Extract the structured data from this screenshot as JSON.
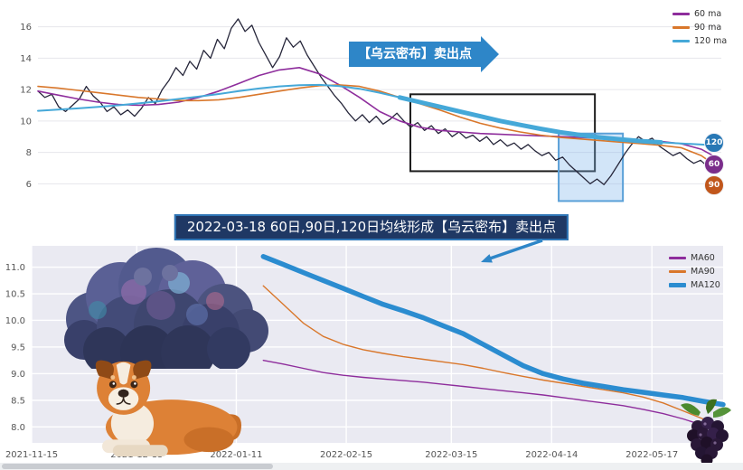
{
  "banner": {
    "text": "2022-03-18 60日,90日,120日均线形成【乌云密布】卖出点",
    "bg": "#1f3864",
    "border": "#2e75b6"
  },
  "chart_data": [
    {
      "type": "line",
      "title": "",
      "xlabel": "",
      "ylabel": "",
      "ylim": [
        5.5,
        16.9
      ],
      "yticks": [
        6,
        8,
        10,
        12,
        14,
        16
      ],
      "grid_color": "#e6e6ec",
      "legend_position": "top-right",
      "legend": [
        {
          "label": "60 ma",
          "color": "#8e2d9c"
        },
        {
          "label": "90 ma",
          "color": "#d9772b"
        },
        {
          "label": "120 ma",
          "color": "#45a8d8"
        }
      ],
      "series": [
        {
          "name": "price",
          "color": "#26263a",
          "width": 1.3,
          "values": [
            11.9,
            11.5,
            11.7,
            10.9,
            10.6,
            11.0,
            11.4,
            12.2,
            11.6,
            11.2,
            10.6,
            10.9,
            10.4,
            10.7,
            10.3,
            10.8,
            11.5,
            11.1,
            12.0,
            12.6,
            13.4,
            12.9,
            13.8,
            13.3,
            14.5,
            14.0,
            15.2,
            14.6,
            15.9,
            16.5,
            15.7,
            16.1,
            15.0,
            14.2,
            13.4,
            14.1,
            15.3,
            14.7,
            15.1,
            14.2,
            13.5,
            12.8,
            12.2,
            11.6,
            11.1,
            10.5,
            10.0,
            10.4,
            9.9,
            10.3,
            9.8,
            10.1,
            10.5,
            10.0,
            9.6,
            9.9,
            9.4,
            9.7,
            9.2,
            9.5,
            9.0,
            9.3,
            8.9,
            9.1,
            8.7,
            9.0,
            8.5,
            8.8,
            8.4,
            8.6,
            8.2,
            8.5,
            8.1,
            7.8,
            8.0,
            7.5,
            7.7,
            7.2,
            6.8,
            6.4,
            6.0,
            6.3,
            5.95,
            6.5,
            7.2,
            7.9,
            8.5,
            9.0,
            8.7,
            8.9,
            8.4,
            8.1,
            7.8,
            8.0,
            7.6,
            7.3,
            7.5,
            7.1,
            7.3,
            7.0
          ]
        },
        {
          "name": "60 ma",
          "color": "#8e2d9c",
          "width": 1.6,
          "values": [
            11.9,
            11.65,
            11.4,
            11.2,
            11.05,
            11.0,
            11.05,
            11.2,
            11.5,
            11.9,
            12.4,
            12.9,
            13.25,
            13.4,
            13.0,
            12.3,
            11.5,
            10.6,
            10.0,
            9.6,
            9.4,
            9.3,
            9.2,
            9.15,
            9.1,
            9.05,
            9.0,
            8.95,
            8.9,
            8.85,
            8.8,
            8.7,
            8.55,
            8.2,
            7.5
          ]
        },
        {
          "name": "90 ma",
          "color": "#d9772b",
          "width": 1.6,
          "values": [
            12.2,
            12.1,
            11.95,
            11.8,
            11.65,
            11.5,
            11.4,
            11.3,
            11.3,
            11.35,
            11.5,
            11.7,
            11.9,
            12.1,
            12.25,
            12.3,
            12.2,
            11.9,
            11.5,
            11.1,
            10.7,
            10.25,
            9.85,
            9.55,
            9.3,
            9.1,
            8.95,
            8.85,
            8.75,
            8.65,
            8.55,
            8.45,
            8.3,
            7.8,
            6.9
          ]
        },
        {
          "name": "120 ma",
          "color": "#45a8d8",
          "width": 2,
          "thick_segment": {
            "from": 0.52,
            "to": 0.93,
            "width": 5
          },
          "values": [
            10.65,
            10.72,
            10.8,
            10.9,
            11.0,
            11.12,
            11.25,
            11.4,
            11.55,
            11.72,
            11.9,
            12.07,
            12.2,
            12.28,
            12.3,
            12.22,
            12.05,
            11.8,
            11.5,
            11.2,
            10.9,
            10.6,
            10.3,
            10.0,
            9.75,
            9.5,
            9.28,
            9.1,
            8.95,
            8.82,
            8.72,
            8.64,
            8.57,
            8.5,
            8.42
          ]
        }
      ],
      "annotations": {
        "callout": {
          "text": "【乌云密布】卖出点",
          "color": "#2e86c8"
        },
        "black_box": {
          "x1": 0.545,
          "x2": 0.815,
          "v1": 11.7,
          "v2": 6.8
        },
        "blue_box": {
          "x1": 0.762,
          "x2": 0.856,
          "v1": 9.2,
          "v2": 4.9,
          "fill": "rgba(125,180,235,0.35)",
          "stroke": "#5aa0d8"
        },
        "badges": [
          {
            "label": "120",
            "color": "#2878b5",
            "value": 8.6
          },
          {
            "label": "60",
            "color": "#7b2d8b",
            "value": 7.2
          },
          {
            "label": "90",
            "color": "#c1571c",
            "value": 5.9
          }
        ]
      }
    },
    {
      "type": "line",
      "title": "",
      "xlabel": "",
      "ylabel": "",
      "ylim": [
        7.7,
        11.4
      ],
      "yticks": [
        8.0,
        8.5,
        9.0,
        9.5,
        10.0,
        10.5,
        11.0
      ],
      "ytick_format": "1f",
      "bg": "#eaeaf2",
      "grid_color": "#ffffff",
      "grid_width": 1.4,
      "legend_position": "top-right",
      "xticks": [
        {
          "label": "2021-11-15",
          "f": 0.0
        },
        {
          "label": "2021-12-13",
          "f": 0.152
        },
        {
          "label": "2022-01-11",
          "f": 0.296
        },
        {
          "label": "2022-02-15",
          "f": 0.455
        },
        {
          "label": "2022-03-15",
          "f": 0.607
        },
        {
          "label": "2022-04-14",
          "f": 0.752
        },
        {
          "label": "2022-05-17",
          "f": 0.897
        }
      ],
      "legend": [
        {
          "label": "MA60",
          "color": "#8e2d9c"
        },
        {
          "label": "MA90",
          "color": "#d9772b"
        },
        {
          "label": "MA120",
          "color": "#2b8cd0",
          "thick": true
        }
      ],
      "series": [
        {
          "name": "MA60",
          "color": "#8e2d9c",
          "width": 1.4,
          "x_start": 0.335,
          "x_end": 1.0,
          "values": [
            9.25,
            9.18,
            9.1,
            9.02,
            8.97,
            8.93,
            8.9,
            8.87,
            8.84,
            8.8,
            8.76,
            8.72,
            8.68,
            8.64,
            8.6,
            8.55,
            8.5,
            8.45,
            8.4,
            8.33,
            8.25,
            8.15,
            8.03,
            7.88
          ]
        },
        {
          "name": "MA90",
          "color": "#d9772b",
          "width": 1.4,
          "x_start": 0.335,
          "x_end": 1.0,
          "values": [
            10.65,
            10.3,
            9.95,
            9.7,
            9.55,
            9.45,
            9.38,
            9.32,
            9.27,
            9.22,
            9.17,
            9.1,
            9.02,
            8.95,
            8.88,
            8.82,
            8.76,
            8.7,
            8.64,
            8.56,
            8.45,
            8.3,
            8.15,
            8.02
          ]
        },
        {
          "name": "MA120",
          "color": "#2b8cd0",
          "width": 5.5,
          "x_start": 0.335,
          "x_end": 1.0,
          "values": [
            11.2,
            11.05,
            10.9,
            10.75,
            10.6,
            10.45,
            10.3,
            10.18,
            10.05,
            9.9,
            9.75,
            9.55,
            9.35,
            9.15,
            9.0,
            8.9,
            8.82,
            8.76,
            8.7,
            8.65,
            8.6,
            8.55,
            8.48,
            8.42
          ]
        }
      ]
    }
  ],
  "decorations": [
    {
      "name": "storm-cloud-illustration"
    },
    {
      "name": "dog-illustration"
    },
    {
      "name": "blackberry-illustration"
    }
  ]
}
